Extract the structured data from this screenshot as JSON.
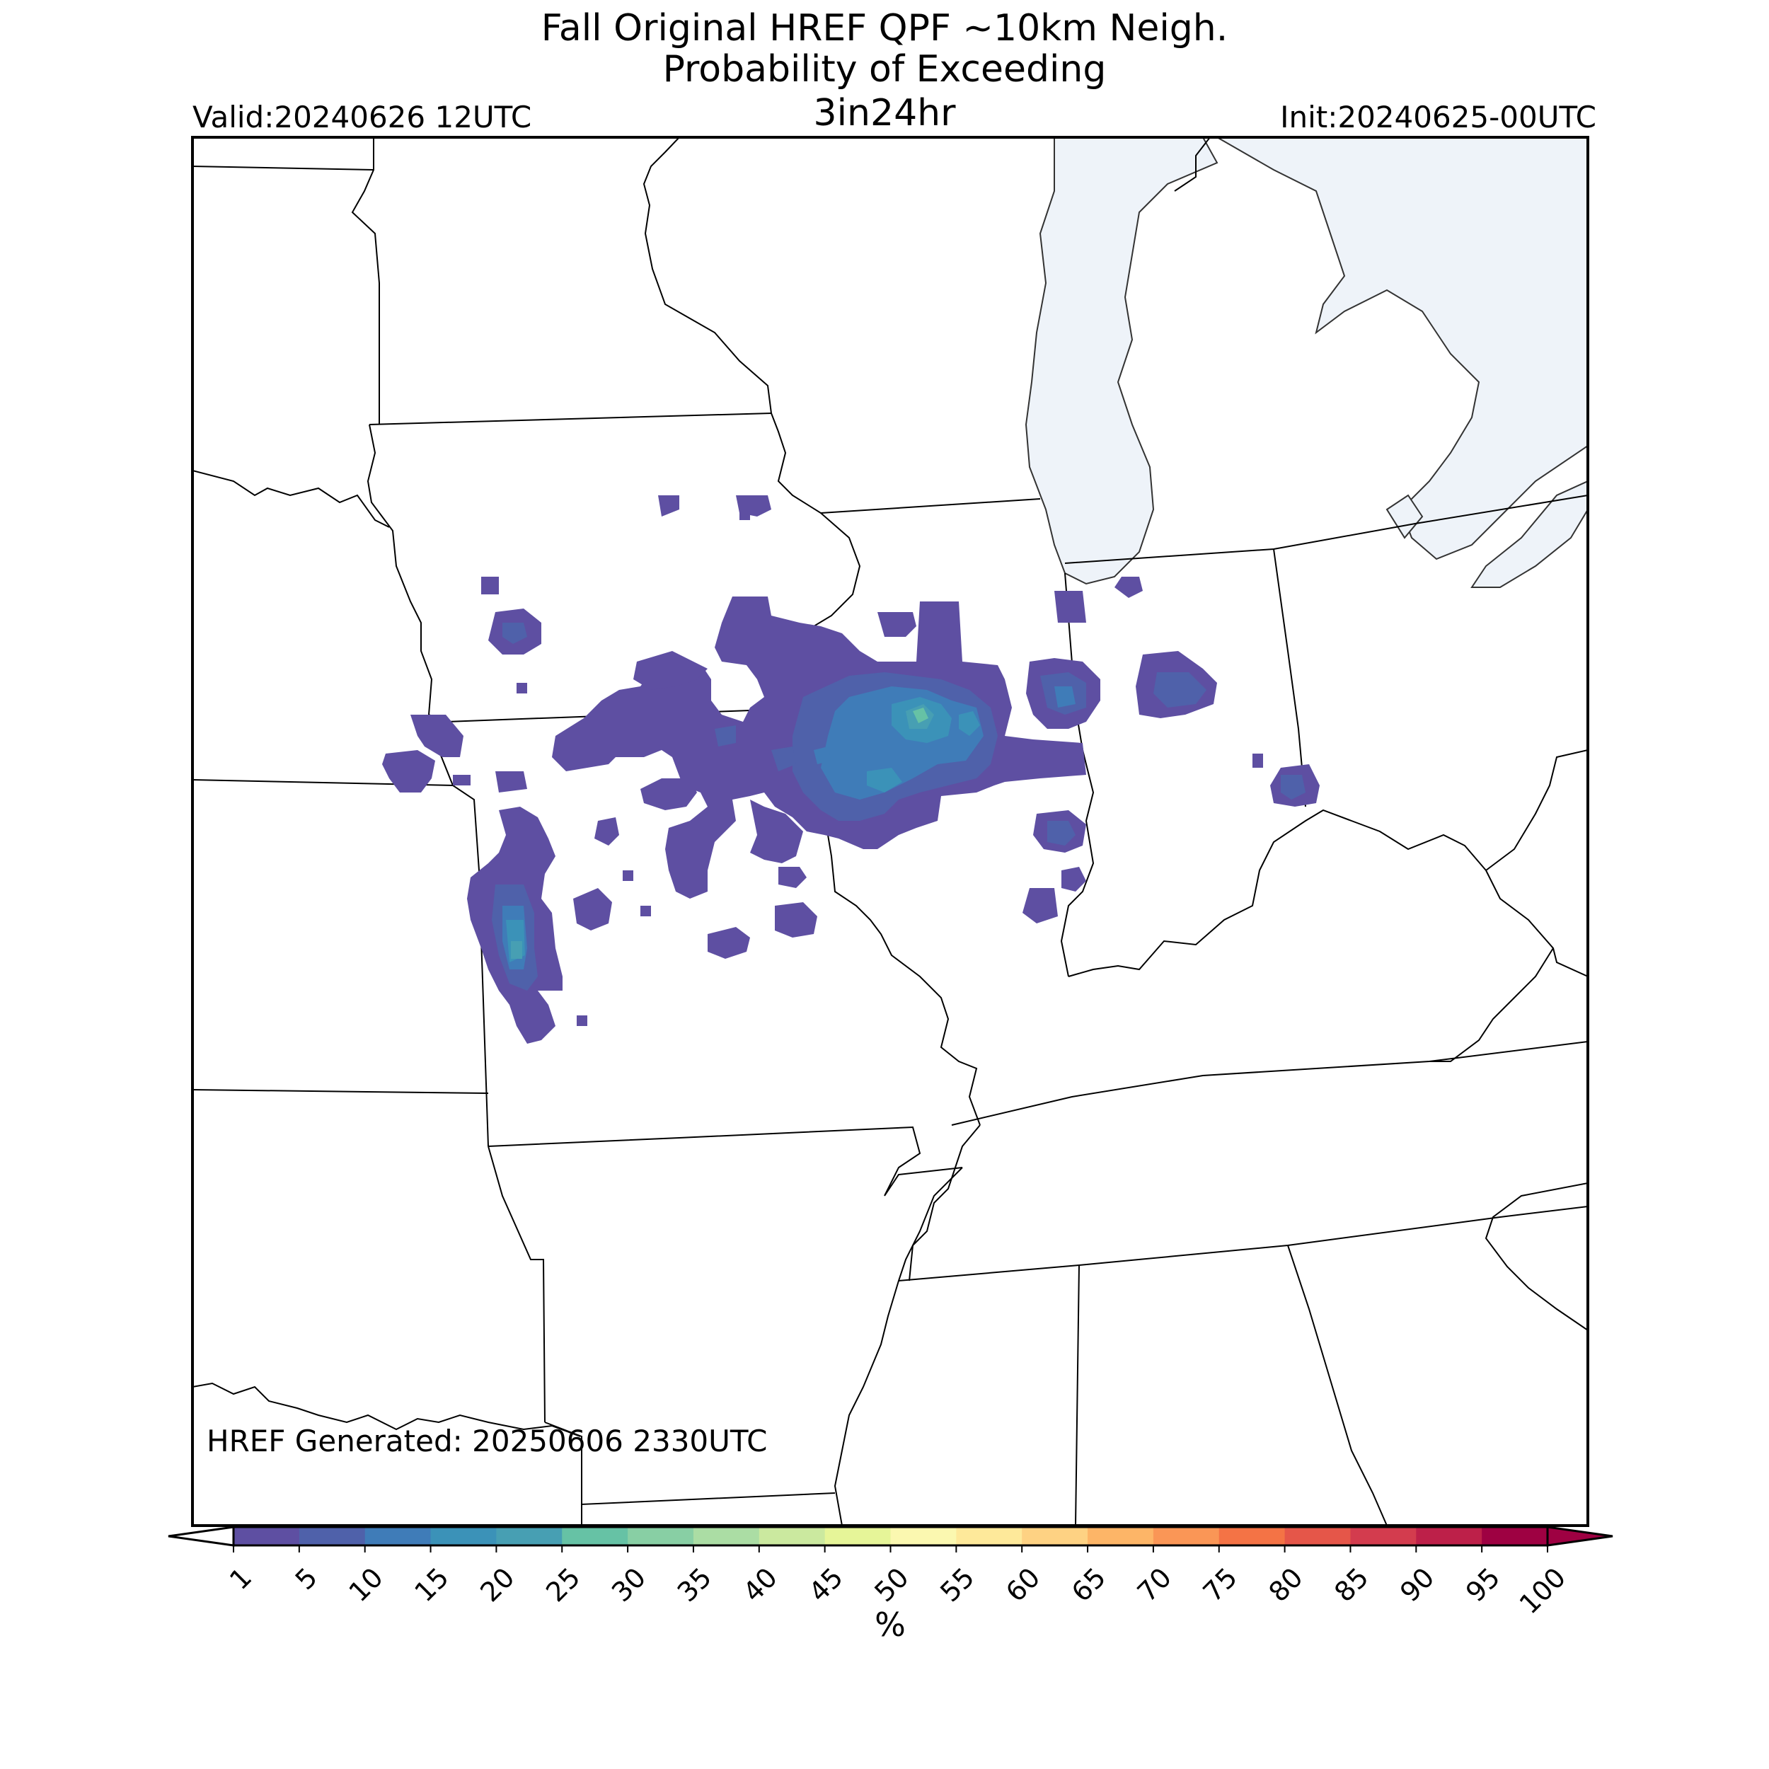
{
  "title": {
    "line1": "Fall Original HREF QPF ~10km Neigh.",
    "line2": "Probability of Exceeding",
    "line3": "3in24hr"
  },
  "valid": "Valid:20240626 12UTC",
  "init": "Init:20240625-00UTC",
  "generated": "HREF Generated: 20250606 2330UTC",
  "colorbar": {
    "label": "%",
    "ticks": [
      "1",
      "5",
      "10",
      "15",
      "20",
      "25",
      "30",
      "35",
      "40",
      "45",
      "50",
      "55",
      "60",
      "65",
      "70",
      "75",
      "80",
      "85",
      "90",
      "95",
      "100"
    ],
    "colors": [
      "#5e4fa2",
      "#4f61aa",
      "#3f7cb8",
      "#3b92b8",
      "#479fb3",
      "#66c2a5",
      "#88cfa4",
      "#abdda4",
      "#cbe99f",
      "#e6f598",
      "#fbf8b0",
      "#fee99a",
      "#fed283",
      "#fdb567",
      "#fa9656",
      "#f47345",
      "#e55649",
      "#d33c4e",
      "#bd2049",
      "#9e0142"
    ],
    "under_color": "#ffffff",
    "over_color": "#9e0142"
  },
  "map": {
    "water_color": "#eef3f9",
    "land_color": "#ffffff",
    "border_color": "#000000"
  },
  "prob_areas": [
    {
      "level": "1-5",
      "color": "#5e4fa2"
    },
    {
      "level": "5-10",
      "color": "#4f61aa"
    },
    {
      "level": "10-15",
      "color": "#3f7cb8"
    },
    {
      "level": "15-20",
      "color": "#3b92b8"
    },
    {
      "level": "20-25",
      "color": "#479fb3"
    },
    {
      "level": "25-30",
      "color": "#66c2a5"
    }
  ]
}
